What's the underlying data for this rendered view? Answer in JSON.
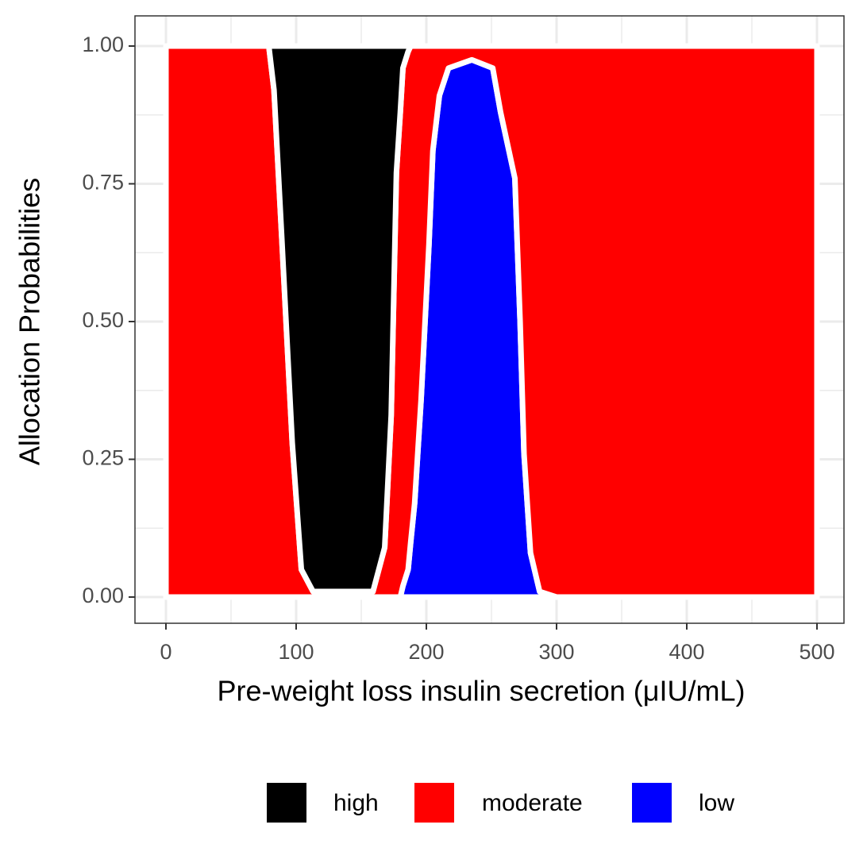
{
  "chart_data": {
    "type": "stacked_area",
    "x_label": "Pre-weight loss insulin secretion (μIU/mL)",
    "y_label": "Allocation Probabilities",
    "x": [
      0,
      50,
      79,
      83,
      89,
      97,
      104,
      113,
      120,
      140,
      159,
      168,
      173,
      177,
      180,
      182,
      186,
      188,
      191,
      196,
      202,
      205,
      210,
      217,
      235,
      251,
      257,
      268,
      272,
      275,
      280,
      287,
      300,
      400,
      500
    ],
    "series": [
      {
        "name": "high",
        "color": "#000000",
        "values": [
          0,
          0,
          0,
          0.08,
          0.35,
          0.72,
          0.95,
          0.99,
          0.99,
          0.99,
          0.99,
          0.91,
          0.67,
          0.23,
          0.12,
          0.04,
          0.01,
          0,
          0,
          0,
          0,
          0,
          0,
          0,
          0,
          0,
          0,
          0,
          0,
          0,
          0,
          0,
          0,
          0,
          0
        ]
      },
      {
        "name": "moderate",
        "color": "#ff0000",
        "values": [
          1,
          1,
          1,
          0.92,
          0.65,
          0.28,
          0.05,
          0.01,
          0.01,
          0.01,
          0.01,
          0.09,
          0.33,
          0.77,
          0.88,
          0.94,
          0.94,
          0.9,
          0.83,
          0.64,
          0.36,
          0.19,
          0.09,
          0.04,
          0.025,
          0.04,
          0.12,
          0.24,
          0.5,
          0.74,
          0.92,
          0.99,
          1,
          1,
          1
        ]
      },
      {
        "name": "low",
        "color": "#0000ff",
        "values": [
          0,
          0,
          0,
          0,
          0,
          0,
          0,
          0,
          0,
          0,
          0,
          0,
          0,
          0,
          0,
          0.02,
          0.05,
          0.1,
          0.17,
          0.36,
          0.64,
          0.81,
          0.91,
          0.96,
          0.975,
          0.96,
          0.88,
          0.76,
          0.5,
          0.26,
          0.08,
          0.01,
          0,
          0,
          0
        ]
      }
    ],
    "xlim": [
      0,
      500
    ],
    "xticks": [
      0,
      100,
      200,
      300,
      400,
      500
    ],
    "ylim": [
      0,
      1
    ],
    "yticks": [
      {
        "value": 0,
        "label": "0.00"
      },
      {
        "value": 0.25,
        "label": "0.25"
      },
      {
        "value": 0.5,
        "label": "0.50"
      },
      {
        "value": 0.75,
        "label": "0.75"
      },
      {
        "value": 1,
        "label": "1.00"
      }
    ],
    "grid": true,
    "legend": "bottom"
  }
}
